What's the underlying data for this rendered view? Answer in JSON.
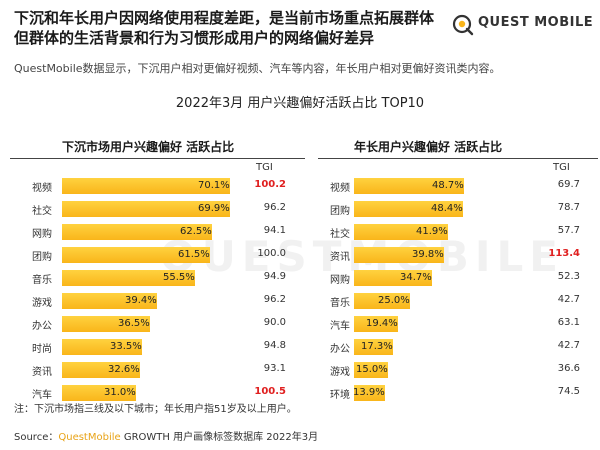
{
  "header": {
    "headline_line1": "下沉和年长用户因网络使用程度差距，是当前市场重点拓展群体",
    "headline_line2": "但群体的生活背景和行为习惯形成用户的网络偏好差异",
    "logo_text": "QUEST MOBILE",
    "subtitle": "QuestMobile数据显示，下沉用户相对更偏好视频、汽车等内容，年长用户相对更偏好资讯类内容。"
  },
  "watermark": "QUESTMOBILE",
  "footer": {
    "note": "注：下沉市场指三线及以下城市；年长用户指51岁及以上用户。",
    "source_prefix": "Source：",
    "source_brand": "QuestMobile",
    "source_rest": " GROWTH 用户画像标签数据库 2022年3月"
  },
  "colors": {
    "bar": "#f9b51a",
    "highlight": "#e02020",
    "brand": "#e8a317"
  },
  "chart_data": [
    {
      "type": "bar",
      "orientation": "horizontal",
      "title": "2022年3月 用户兴趣偏好活跃占比 TOP10",
      "panel_title": "下沉市场用户兴趣偏好 活跃占比",
      "tgi_header": "TGI",
      "categories": [
        "视频",
        "社交",
        "网购",
        "团购",
        "音乐",
        "游戏",
        "办公",
        "时尚",
        "资讯",
        "汽车"
      ],
      "values": [
        70.1,
        69.9,
        62.5,
        61.5,
        55.5,
        39.4,
        36.5,
        33.5,
        32.6,
        31.0
      ],
      "value_labels": [
        "70.1%",
        "69.9%",
        "62.5%",
        "61.5%",
        "55.5%",
        "39.4%",
        "36.5%",
        "33.5%",
        "32.6%",
        "31.0%"
      ],
      "tgi": [
        "100.2",
        "96.2",
        "94.1",
        "100.0",
        "94.9",
        "96.2",
        "90.0",
        "94.8",
        "93.1",
        "100.5"
      ],
      "tgi_highlight": [
        true,
        false,
        false,
        false,
        false,
        false,
        false,
        false,
        false,
        true
      ],
      "xlim": [
        0,
        80
      ]
    },
    {
      "type": "bar",
      "orientation": "horizontal",
      "panel_title": "年长用户兴趣偏好 活跃占比",
      "tgi_header": "TGI",
      "categories": [
        "视频",
        "团购",
        "社交",
        "资讯",
        "网购",
        "音乐",
        "汽车",
        "办公",
        "游戏",
        "环境"
      ],
      "values": [
        48.7,
        48.4,
        41.9,
        39.8,
        34.7,
        25.0,
        19.4,
        17.3,
        15.0,
        13.9
      ],
      "value_labels": [
        "48.7%",
        "48.4%",
        "41.9%",
        "39.8%",
        "34.7%",
        "25.0%",
        "19.4%",
        "17.3%",
        "15.0%",
        "13.9%"
      ],
      "tgi": [
        "69.7",
        "78.7",
        "57.7",
        "113.4",
        "52.3",
        "42.7",
        "63.1",
        "42.7",
        "36.6",
        "74.5"
      ],
      "tgi_highlight": [
        false,
        false,
        false,
        true,
        false,
        false,
        false,
        false,
        false,
        false
      ],
      "xlim": [
        0,
        80
      ]
    }
  ]
}
